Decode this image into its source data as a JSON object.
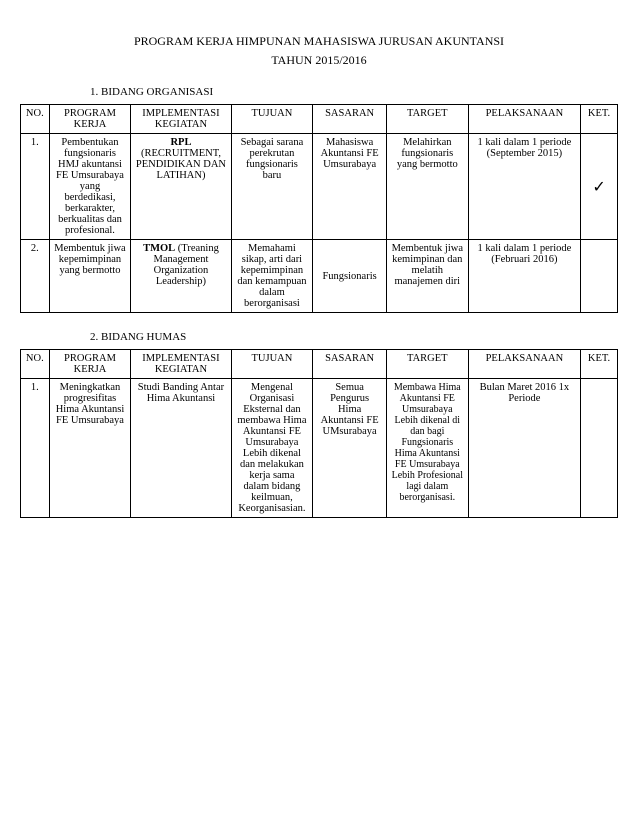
{
  "header": {
    "line1": "PROGRAM KERJA HIMPUNAN MAHASISWA JURUSAN AKUNTANSI",
    "line2": "TAHUN 2015/2016"
  },
  "sections": [
    {
      "heading": "1.   BIDANG ORGANISASI",
      "columns": [
        "NO.",
        "PROGRAM KERJA",
        "IMPLEMENTASI KEGIATAN",
        "TUJUAN",
        "SASARAN",
        "TARGET",
        "PELAKSANAAN",
        "KET."
      ],
      "rows": [
        {
          "no": "1.",
          "program": "Pembentukan fungsionaris HMJ akuntansi FE Umsurabaya yang berdedikasi, berkarakter, berkualitas dan profesional.",
          "impl_bold": "RPL",
          "impl_rest": " (RECRUITMENT, PENDIDIKAN DAN LATIHAN)",
          "tujuan": "Sebagai sarana perekrutan fungsionaris baru",
          "sasaran": "Mahasiswa Akuntansi FE Umsurabaya",
          "target": "Melahirkan fungsionaris yang bermotto",
          "pelak": "1 kali dalam 1 periode (September 2015)",
          "ket": "✓"
        },
        {
          "no": "2.",
          "program": "Membentuk jiwa kepemimpinan yang bermotto",
          "impl_bold": "TMOL",
          "impl_rest": " (Treaning Management Organization Leadership)",
          "tujuan": "Memahami sikap, arti dari kepemimpinan dan kemampuan dalam berorganisasi",
          "sasaran": "Fungsionaris",
          "target": "Membentuk jiwa kemimpinan dan melatih manajemen diri",
          "pelak": "1 kali dalam 1 periode (Februari 2016)",
          "ket": ""
        }
      ]
    },
    {
      "heading": "2.   BIDANG HUMAS",
      "columns": [
        "NO.",
        "PROGRAM KERJA",
        "IMPLEMENTASI KEGIATAN",
        "TUJUAN",
        "SASARAN",
        "TARGET",
        "PELAKSANAAN",
        "KET."
      ],
      "rows": [
        {
          "no": "1.",
          "program": "Meningkatkan progresifitas Hima Akuntansi FE Umsurabaya",
          "impl_bold": "",
          "impl_rest": "Studi Banding Antar Hima Akuntansi",
          "tujuan": "Mengenal Organisasi Eksternal dan membawa Hima Akuntansi FE Umsurabaya Lebih dikenal dan melakukan kerja sama dalam bidang keilmuan, Keorganisasian.",
          "sasaran": "Semua Pengurus Hima Akuntansi FE UMsurabaya",
          "target": "Membawa Hima Akuntansi FE Umsurabaya Lebih dikenal di dan bagi Fungsionaris Hima Akuntansi FE Umsurabaya Lebih Profesional lagi dalam berorganisasi.",
          "pelak": "Bulan Maret 2016 1x Periode",
          "ket": ""
        }
      ]
    }
  ]
}
